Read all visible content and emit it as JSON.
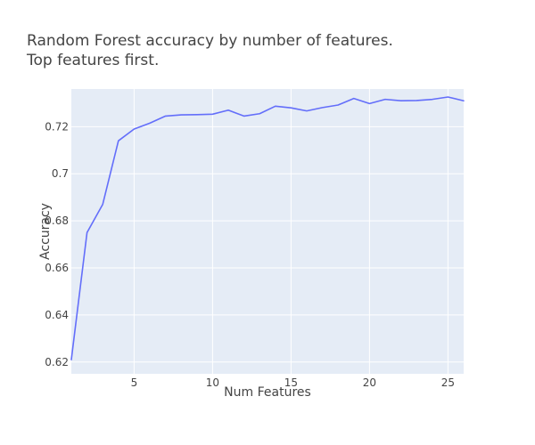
{
  "chart_data": {
    "type": "line",
    "title_lines": [
      "Random Forest accuracy by number of features.",
      "Top features first."
    ],
    "xlabel": "Num Features",
    "ylabel": "Accuracy",
    "xlim": [
      1,
      26
    ],
    "ylim": [
      0.615,
      0.736
    ],
    "xticks": [
      5,
      10,
      15,
      20,
      25
    ],
    "xtick_labels": [
      "5",
      "10",
      "15",
      "20",
      "25"
    ],
    "yticks": [
      0.62,
      0.64,
      0.66,
      0.68,
      0.7,
      0.72
    ],
    "ytick_labels": [
      "0.62",
      "0.64",
      "0.66",
      "0.68",
      "0.7",
      "0.72"
    ],
    "grid": true,
    "series": [
      {
        "color": "#636efa",
        "x": [
          1,
          2,
          3,
          4,
          5,
          6,
          7,
          8,
          9,
          10,
          11,
          12,
          13,
          14,
          15,
          16,
          17,
          18,
          19,
          20,
          21,
          22,
          23,
          24,
          25,
          26
        ],
        "y": [
          0.621,
          0.675,
          0.687,
          0.714,
          0.719,
          0.7215,
          0.7245,
          0.725,
          0.7251,
          0.7253,
          0.727,
          0.7245,
          0.7255,
          0.7287,
          0.728,
          0.7267,
          0.7281,
          0.7292,
          0.732,
          0.7298,
          0.7316,
          0.731,
          0.7311,
          0.7316,
          0.7326,
          0.731
        ]
      }
    ]
  },
  "colors": {
    "plot_bg": "#e5ecf6",
    "grid": "#ffffff",
    "line": "#636efa",
    "text": "#444444"
  }
}
